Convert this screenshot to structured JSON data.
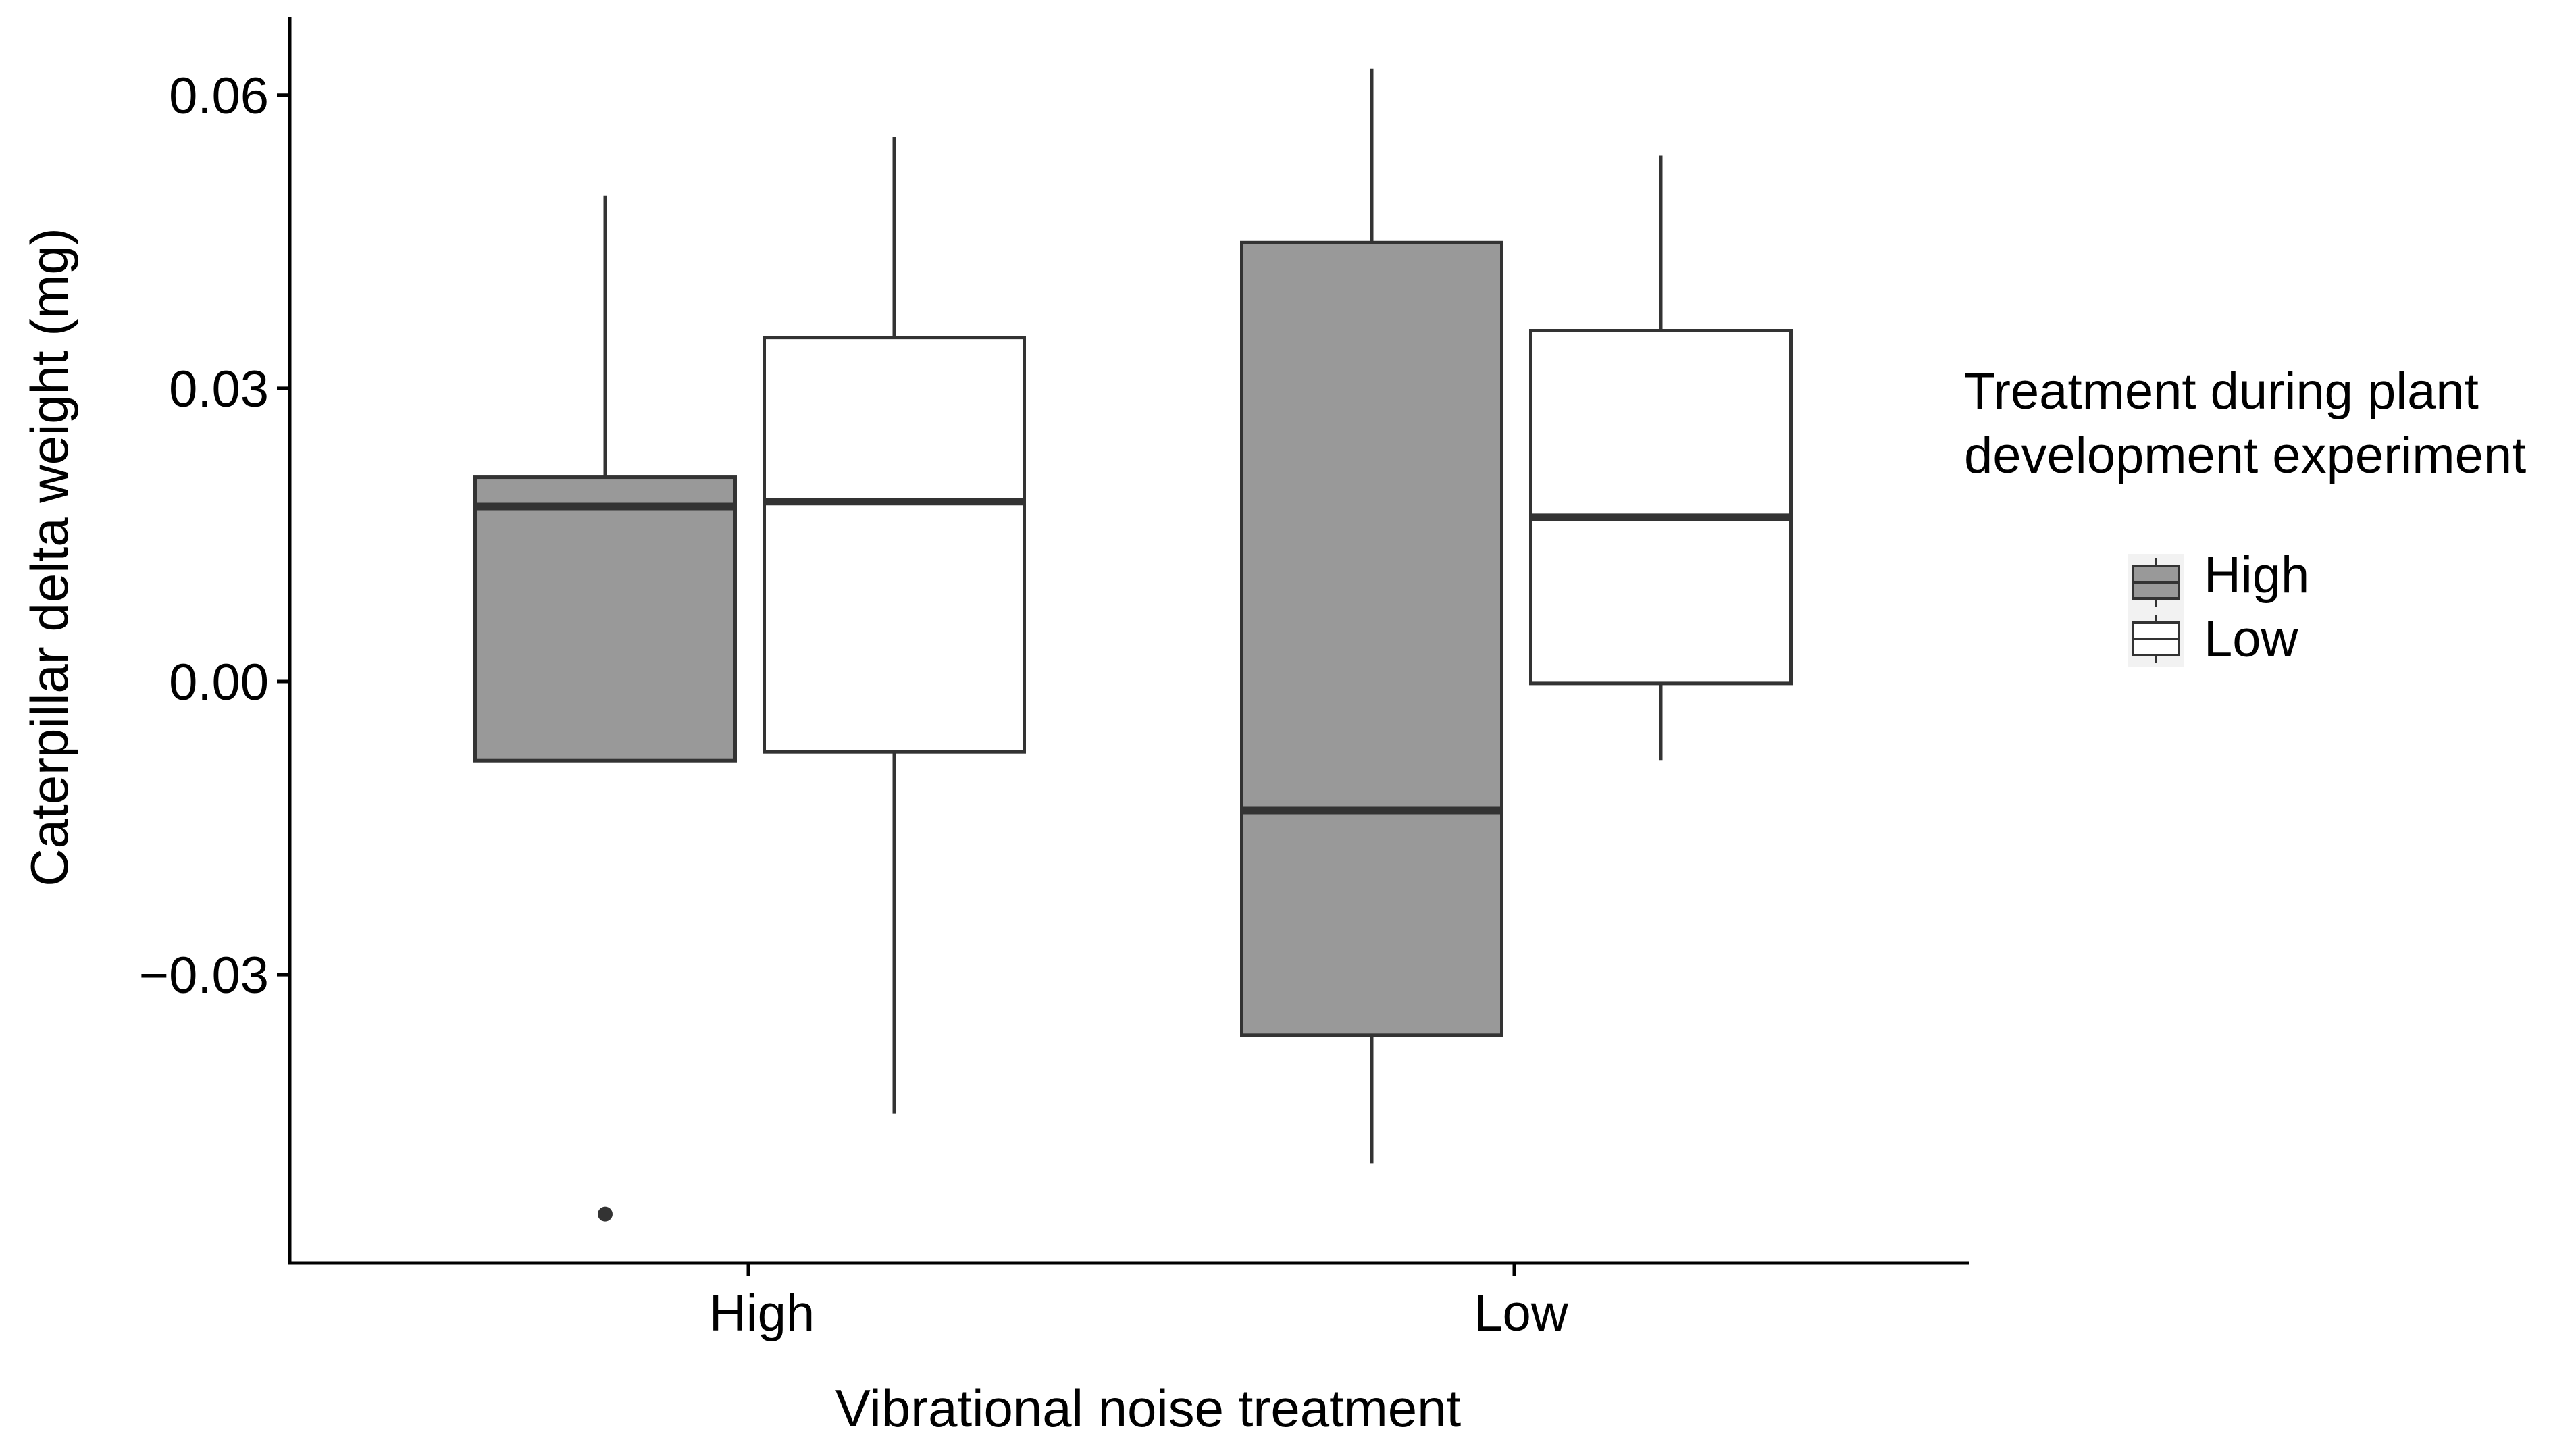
{
  "chart_data": {
    "type": "boxplot",
    "title": "",
    "xlabel": "Vibrational noise treatment",
    "ylabel": "Caterpillar delta weight (mg)",
    "ylim": [
      -0.0595,
      0.068
    ],
    "yticks": [
      -0.03,
      0.0,
      0.03,
      0.06
    ],
    "ytick_labels": [
      "−0.03",
      "0.00",
      "0.03",
      "0.06"
    ],
    "categories": [
      "High",
      "Low"
    ],
    "legend": {
      "title_lines": [
        "Treatment during plant",
        "development experiment"
      ],
      "position": "right",
      "entries": [
        {
          "label": "High",
          "color": "#999999"
        },
        {
          "label": "Low",
          "color": "#ffffff"
        }
      ]
    },
    "series": [
      {
        "name": "High",
        "color": "#999999",
        "boxes": [
          {
            "category": "High",
            "whisker_low": -0.0081,
            "q1": -0.0081,
            "median": 0.0179,
            "q3": 0.0209,
            "whisker_high": 0.0497,
            "outliers": [
              -0.0545
            ]
          },
          {
            "category": "Low",
            "whisker_low": -0.0493,
            "q1": -0.0362,
            "median": -0.0132,
            "q3": 0.0449,
            "whisker_high": 0.0627,
            "outliers": []
          }
        ]
      },
      {
        "name": "Low",
        "color": "#ffffff",
        "boxes": [
          {
            "category": "High",
            "whisker_low": -0.0442,
            "q1": -0.0072,
            "median": 0.0184,
            "q3": 0.0352,
            "whisker_high": 0.0557,
            "outliers": []
          },
          {
            "category": "Low",
            "whisker_low": -0.0081,
            "q1": -0.0002,
            "median": 0.0168,
            "q3": 0.0359,
            "whisker_high": 0.0538,
            "outliers": []
          }
        ]
      }
    ]
  }
}
